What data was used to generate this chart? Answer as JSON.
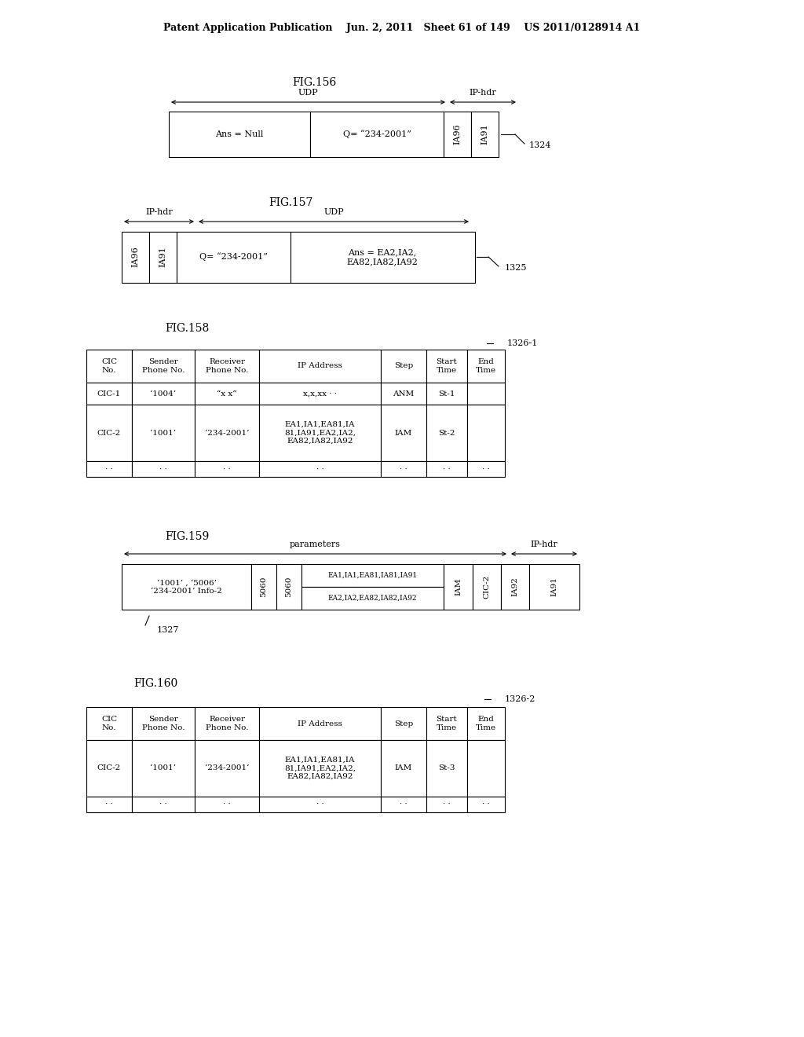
{
  "bg_color": "#ffffff",
  "header_text": "Patent Application Publication    Jun. 2, 2011   Sheet 61 of 149    US 2011/0128914 A1",
  "fig156_label": "FIG.156",
  "fig156_udp_label": "UDP",
  "fig156_iphdr_label": "IP-hdr",
  "fig156_cell1": "Ans = Null",
  "fig156_cell2": "Q= “234-2001”",
  "fig156_cell3": "IA96",
  "fig156_cell4": "IA91",
  "fig156_ref": "1324",
  "fig157_label": "FIG.157",
  "fig157_iphdr_label": "IP-hdr",
  "fig157_udp_label": "UDP",
  "fig157_cell1": "IA96",
  "fig157_cell2": "IA91",
  "fig157_cell3": "Q= “234-2001”",
  "fig157_cell4": "Ans = EA2,IA2,\nEA82,IA82,IA92",
  "fig157_ref": "1325",
  "fig158_label": "FIG.158",
  "fig158_ref": "1326-1",
  "fig158_headers": [
    "CIC\nNo.",
    "Sender\nPhone No.",
    "Receiver\nPhone No.",
    "IP Address",
    "Step",
    "Start\nTime",
    "End\nTime"
  ],
  "fig158_row1": [
    "CIC-1",
    "‘1004’",
    "“x x”",
    "x,x,xx · ·",
    "ANM",
    "St-1",
    ""
  ],
  "fig158_row2": [
    "CIC-2",
    "‘1001’",
    "‘234-2001’",
    "EA1,IA1,EA81,IA\n81,IA91,EA2,IA2,\nEA82,IA82,IA92",
    "IAM",
    "St-2",
    ""
  ],
  "fig158_row3": [
    "· ·",
    "· ·",
    "· ·",
    "· ·",
    "· ·",
    "· ·",
    "· ·"
  ],
  "fig159_label": "FIG.159",
  "fig159_params_label": "parameters",
  "fig159_iphdr_label": "IP-hdr",
  "fig159_cell1": "‘1001’ , ‘5006’\n‘234-2001’ Info-2",
  "fig159_cell2": "5060",
  "fig159_cell3": "5060",
  "fig159_cell4a": "EA1,IA1,EA81,IA81,IA91",
  "fig159_cell4b": "EA2,IA2,EA82,IA82,IA92",
  "fig159_cell5": "IAM",
  "fig159_cell6": "CIC-2",
  "fig159_cell7": "IA92",
  "fig159_cell8": "IA91",
  "fig159_ref": "1327",
  "fig160_label": "FIG.160",
  "fig160_ref": "1326-2",
  "fig160_headers": [
    "CIC\nNo.",
    "Sender\nPhone No.",
    "Receiver\nPhone No.",
    "IP Address",
    "Step",
    "Start\nTime",
    "End\nTime"
  ],
  "fig160_row1": [
    "CIC-2",
    "‘1001’",
    "‘234-2001’",
    "EA1,IA1,EA81,IA\n81,IA91,EA2,IA2,\nEA82,IA82,IA92",
    "IAM",
    "St-3",
    ""
  ],
  "fig160_row2": [
    "· ·",
    "· ·",
    "· ·",
    "· ·",
    "· ·",
    "· ·",
    "· ·"
  ]
}
